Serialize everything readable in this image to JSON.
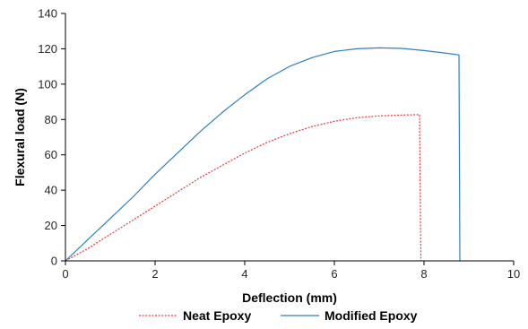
{
  "chart_data": {
    "type": "line",
    "title": "",
    "xlabel": "Deflection (mm)",
    "ylabel": "Flexural load (N)",
    "xlim": [
      0,
      10
    ],
    "ylim": [
      0,
      140
    ],
    "x_ticks": [
      0,
      2,
      4,
      6,
      8,
      10
    ],
    "y_ticks": [
      0,
      20,
      40,
      60,
      80,
      100,
      120,
      140
    ],
    "grid": false,
    "legend_position": "bottom",
    "series": [
      {
        "name": "Neat Epoxy",
        "color": "#e8383d",
        "dash": "dotted",
        "points": [
          [
            0,
            0
          ],
          [
            0.5,
            7
          ],
          [
            1,
            15
          ],
          [
            1.5,
            23
          ],
          [
            2,
            31
          ],
          [
            2.5,
            39
          ],
          [
            3,
            47
          ],
          [
            3.5,
            54
          ],
          [
            4,
            61
          ],
          [
            4.5,
            67
          ],
          [
            5,
            72
          ],
          [
            5.5,
            76
          ],
          [
            6,
            79
          ],
          [
            6.5,
            81
          ],
          [
            7,
            82
          ],
          [
            7.5,
            82.5
          ],
          [
            7.9,
            82.8
          ],
          [
            7.93,
            0
          ]
        ]
      },
      {
        "name": "Modified Epoxy",
        "color": "#2e7fc1",
        "dash": "solid",
        "points": [
          [
            0,
            0
          ],
          [
            0.5,
            12
          ],
          [
            1,
            24
          ],
          [
            1.5,
            36
          ],
          [
            2,
            49
          ],
          [
            2.5,
            61
          ],
          [
            3,
            73
          ],
          [
            3.5,
            84
          ],
          [
            4,
            94
          ],
          [
            4.5,
            103
          ],
          [
            5,
            110
          ],
          [
            5.5,
            115
          ],
          [
            6,
            118.5
          ],
          [
            6.5,
            120
          ],
          [
            7,
            120.5
          ],
          [
            7.5,
            120.2
          ],
          [
            8,
            119
          ],
          [
            8.5,
            117.5
          ],
          [
            8.78,
            116.5
          ],
          [
            8.8,
            0
          ]
        ]
      }
    ]
  }
}
